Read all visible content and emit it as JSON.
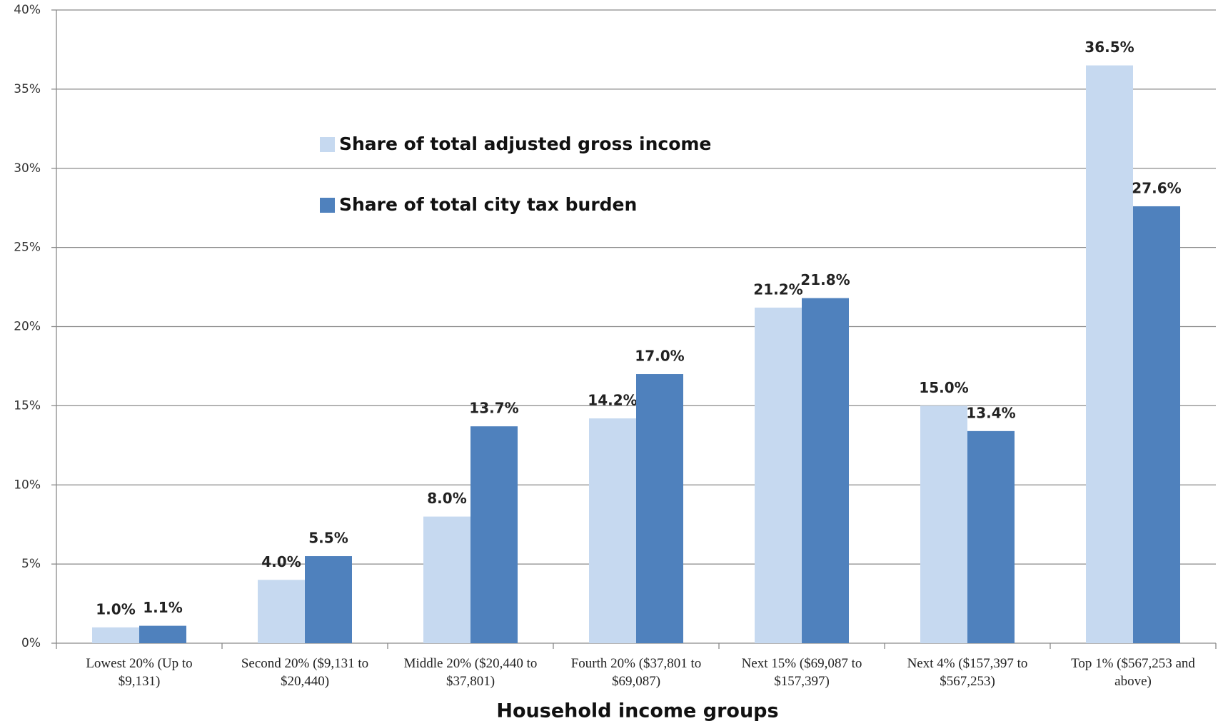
{
  "chart_data": {
    "type": "bar",
    "x_label": "Household income groups",
    "categories": [
      "Lowest 20% (Up to $9,131)",
      "Second 20% ($9,131 to $20,440)",
      "Middle 20% ($20,440 to $37,801)",
      "Fourth 20% ($37,801 to $69,087)",
      "Next 15% ($69,087 to $157,397)",
      "Next 4% ($157,397 to $567,253)",
      "Top 1% ($567,253 and above)"
    ],
    "series": [
      {
        "name": "Share of total adjusted gross income",
        "color": "#c6d9f0",
        "values": [
          1.0,
          4.0,
          8.0,
          14.2,
          21.2,
          15.0,
          36.5
        ],
        "value_labels": [
          "1.0%",
          "4.0%",
          "8.0%",
          "14.2%",
          "21.2%",
          "15.0%",
          "36.5%"
        ]
      },
      {
        "name": "Share of total city tax burden",
        "color": "#4f81bd",
        "values": [
          1.1,
          5.5,
          13.7,
          17.0,
          21.8,
          13.4,
          27.6
        ],
        "value_labels": [
          "1.1%",
          "5.5%",
          "13.7%",
          "17.0%",
          "21.8%",
          "13.4%",
          "27.6%"
        ]
      }
    ],
    "ylim": [
      0,
      40
    ],
    "yticks": [
      {
        "value": 0,
        "label": "0%"
      },
      {
        "value": 5,
        "label": "5%"
      },
      {
        "value": 10,
        "label": "10%"
      },
      {
        "value": 15,
        "label": "15%"
      },
      {
        "value": 20,
        "label": "20%"
      },
      {
        "value": 25,
        "label": "25%"
      },
      {
        "value": 30,
        "label": "30%"
      },
      {
        "value": 35,
        "label": "35%"
      },
      {
        "value": 40,
        "label": "40%"
      }
    ],
    "grid": true
  }
}
